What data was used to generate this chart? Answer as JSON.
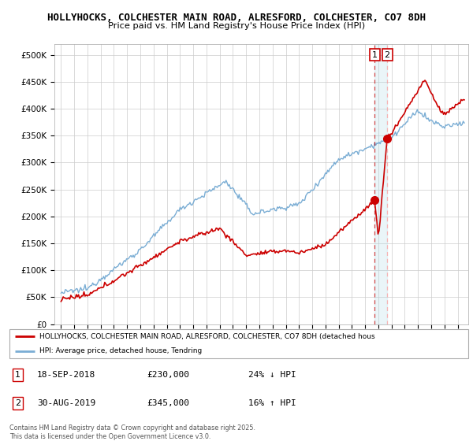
{
  "title1": "HOLLYHOCKS, COLCHESTER MAIN ROAD, ALRESFORD, COLCHESTER, CO7 8DH",
  "title2": "Price paid vs. HM Land Registry's House Price Index (HPI)",
  "ylabel_ticks": [
    "£0",
    "£50K",
    "£100K",
    "£150K",
    "£200K",
    "£250K",
    "£300K",
    "£350K",
    "£400K",
    "£450K",
    "£500K"
  ],
  "ytick_vals": [
    0,
    50000,
    100000,
    150000,
    200000,
    250000,
    300000,
    350000,
    400000,
    450000,
    500000
  ],
  "ylim": [
    0,
    520000
  ],
  "legend_line1": "HOLLYHOCKS, COLCHESTER MAIN ROAD, ALRESFORD, COLCHESTER, CO7 8DH (detached hous",
  "legend_line2": "HPI: Average price, detached house, Tendring",
  "annotation1_date": "18-SEP-2018",
  "annotation1_price": "£230,000",
  "annotation1_hpi": "24% ↓ HPI",
  "annotation2_date": "30-AUG-2019",
  "annotation2_price": "£345,000",
  "annotation2_hpi": "16% ↑ HPI",
  "footer": "Contains HM Land Registry data © Crown copyright and database right 2025.\nThis data is licensed under the Open Government Licence v3.0.",
  "red_color": "#cc0000",
  "blue_color": "#7aadd4",
  "marker1_x": 2018.72,
  "marker1_y": 230000,
  "marker2_x": 2019.67,
  "marker2_y": 345000,
  "xlim_left": 1994.5,
  "xlim_right": 2025.8
}
